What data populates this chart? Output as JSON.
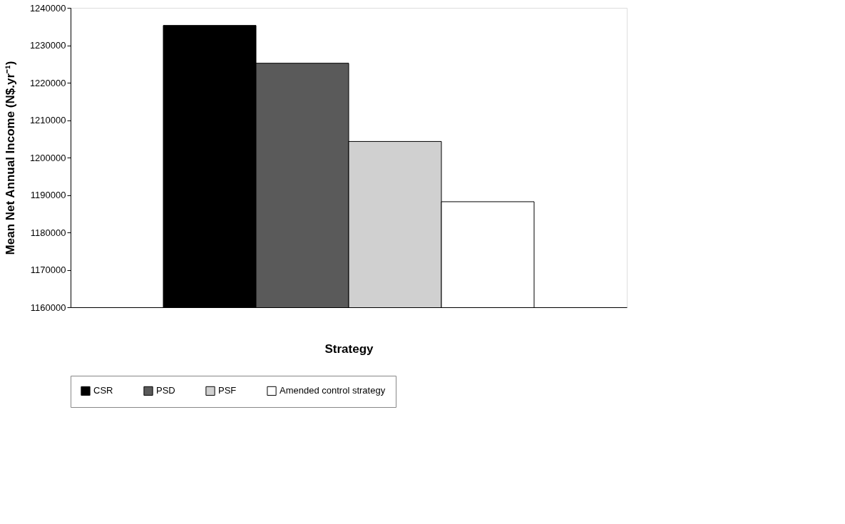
{
  "chart_data": {
    "type": "bar",
    "xlabel": "Strategy",
    "ylabel": "Mean Net Annual Income (N$.yr⁻¹)",
    "categories": [
      null
    ],
    "series": [
      {
        "name": "CSR",
        "color": "#000000",
        "values": [
          1235300
        ]
      },
      {
        "name": "PSD",
        "color": "#5a5a5a",
        "values": [
          1225200
        ]
      },
      {
        "name": "PSF",
        "color": "#d0d0d0",
        "values": [
          1204300
        ]
      },
      {
        "name": "Amended control strategy",
        "color": "#ffffff",
        "values": [
          1188200
        ]
      }
    ],
    "ylim": [
      1160000,
      1240000
    ],
    "yticks": [
      1160000,
      1170000,
      1180000,
      1190000,
      1200000,
      1210000,
      1220000,
      1230000,
      1240000
    ],
    "grid": false,
    "legend": "bottom",
    "tick_labels": "y"
  }
}
